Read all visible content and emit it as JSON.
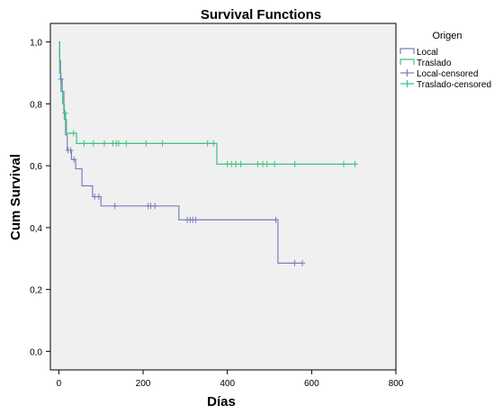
{
  "chart_data": {
    "type": "line",
    "title": "Survival Functions",
    "xlabel": "Días",
    "ylabel": "Cum Survival",
    "xlim": [
      -20,
      800
    ],
    "ylim": [
      -0.06,
      1.06
    ],
    "xticks": [
      0,
      200,
      400,
      600,
      800
    ],
    "xtick_labels": [
      "0",
      "200",
      "400",
      "600",
      "800"
    ],
    "yticks": [
      0.0,
      0.2,
      0.4,
      0.6,
      0.8,
      1.0
    ],
    "ytick_labels": [
      "0,0",
      "0,2",
      "0,4",
      "0,6",
      "0,8",
      "1,0"
    ],
    "grid": false,
    "plot_background": "#f0f0f0",
    "legend": {
      "title": "Origen",
      "placement": "right",
      "entries": [
        {
          "label": "Local",
          "kind": "step",
          "color": "#7a7ec0"
        },
        {
          "label": "Traslado",
          "kind": "step",
          "color": "#38c47e"
        },
        {
          "label": "Local-censored",
          "kind": "censor",
          "color": "#7a7ec0"
        },
        {
          "label": "Traslado-censored",
          "kind": "censor",
          "color": "#38c47e"
        }
      ]
    },
    "series": [
      {
        "name": "Local",
        "color": "#7a7ec0",
        "steps": [
          [
            0,
            1.0
          ],
          [
            2,
            0.94
          ],
          [
            4,
            0.88
          ],
          [
            8,
            0.84
          ],
          [
            12,
            0.77
          ],
          [
            16,
            0.7
          ],
          [
            20,
            0.65
          ],
          [
            30,
            0.62
          ],
          [
            40,
            0.59
          ],
          [
            55,
            0.535
          ],
          [
            80,
            0.5
          ],
          [
            100,
            0.47
          ],
          [
            285,
            0.425
          ],
          [
            520,
            0.285
          ],
          [
            580,
            0.285
          ]
        ],
        "censored": [
          [
            5,
            0.88
          ],
          [
            22,
            0.65
          ],
          [
            28,
            0.65
          ],
          [
            36,
            0.62
          ],
          [
            85,
            0.5
          ],
          [
            95,
            0.5
          ],
          [
            133,
            0.47
          ],
          [
            212,
            0.47
          ],
          [
            218,
            0.47
          ],
          [
            228,
            0.47
          ],
          [
            305,
            0.425
          ],
          [
            312,
            0.425
          ],
          [
            318,
            0.425
          ],
          [
            325,
            0.425
          ],
          [
            515,
            0.425
          ],
          [
            560,
            0.285
          ],
          [
            578,
            0.285
          ]
        ]
      },
      {
        "name": "Traslado",
        "color": "#38c47e",
        "steps": [
          [
            0,
            1.0
          ],
          [
            2,
            0.9
          ],
          [
            5,
            0.84
          ],
          [
            9,
            0.8
          ],
          [
            13,
            0.75
          ],
          [
            18,
            0.705
          ],
          [
            42,
            0.672
          ],
          [
            375,
            0.605
          ],
          [
            708,
            0.605
          ]
        ],
        "censored": [
          [
            15,
            0.77
          ],
          [
            35,
            0.705
          ],
          [
            60,
            0.672
          ],
          [
            82,
            0.672
          ],
          [
            108,
            0.672
          ],
          [
            128,
            0.672
          ],
          [
            136,
            0.672
          ],
          [
            142,
            0.672
          ],
          [
            160,
            0.672
          ],
          [
            207,
            0.672
          ],
          [
            246,
            0.672
          ],
          [
            353,
            0.672
          ],
          [
            367,
            0.672
          ],
          [
            400,
            0.605
          ],
          [
            410,
            0.605
          ],
          [
            420,
            0.605
          ],
          [
            432,
            0.605
          ],
          [
            472,
            0.605
          ],
          [
            484,
            0.605
          ],
          [
            494,
            0.605
          ],
          [
            512,
            0.605
          ],
          [
            560,
            0.605
          ],
          [
            676,
            0.605
          ],
          [
            703,
            0.605
          ]
        ]
      }
    ]
  }
}
